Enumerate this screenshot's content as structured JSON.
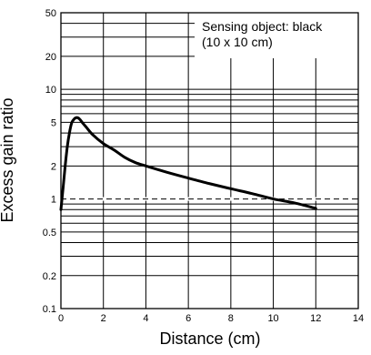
{
  "chart_data": {
    "type": "line",
    "xlabel": "Distance (cm)",
    "ylabel": "Excess gain ratio",
    "xlim": [
      0,
      14
    ],
    "ylim": [
      0.1,
      50
    ],
    "yscale": "log",
    "x_ticks": [
      0,
      2,
      4,
      6,
      8,
      10,
      12,
      14
    ],
    "x_tick_labels": [
      "0",
      "2",
      "4",
      "6",
      "8",
      "10",
      "12",
      "14"
    ],
    "y_ticks": [
      0.1,
      0.2,
      0.5,
      1,
      2,
      5,
      10,
      20,
      50
    ],
    "y_tick_labels": [
      "0.1",
      "0.2",
      "0.5",
      "1",
      "2",
      "5",
      "10",
      "20",
      "50"
    ],
    "grid": true,
    "reference_line": {
      "y": 1,
      "style": "dashed"
    },
    "annotation": {
      "lines": [
        "Sensing object: black",
        "(10 x 10 cm)"
      ],
      "placement": "top-right"
    },
    "series": [
      {
        "x": [
          0,
          0.1,
          0.2,
          0.3,
          0.4,
          0.5,
          0.6,
          0.7,
          0.8,
          0.9,
          1.0,
          1.2,
          1.5,
          2,
          2.5,
          3,
          3.5,
          4,
          5,
          6,
          7,
          8,
          9,
          10,
          11,
          12
        ],
        "y": [
          0.8,
          1.25,
          2.0,
          3.0,
          4.0,
          4.9,
          5.3,
          5.5,
          5.5,
          5.3,
          5.0,
          4.5,
          3.85,
          3.2,
          2.8,
          2.4,
          2.15,
          2.0,
          1.75,
          1.55,
          1.38,
          1.24,
          1.12,
          1.0,
          0.92,
          0.82
        ]
      }
    ]
  }
}
